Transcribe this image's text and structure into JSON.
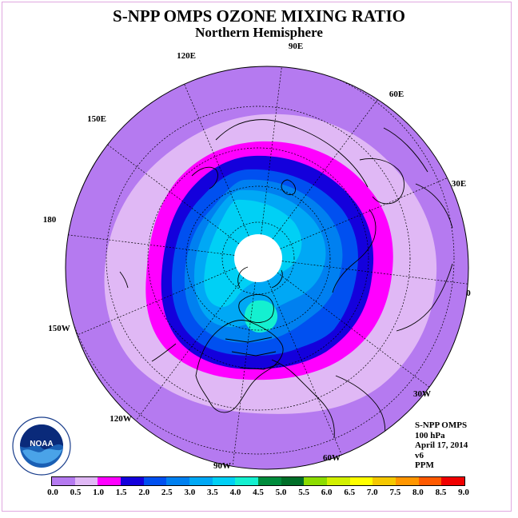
{
  "title": "S-NPP OMPS OZONE MIXING RATIO",
  "subtitle": "Northern Hemisphere",
  "longitude_labels": [
    "90E",
    "60E",
    "30E",
    "0",
    "30W",
    "60W",
    "90W",
    "120W",
    "150W",
    "180",
    "150E",
    "120E"
  ],
  "info": {
    "instrument": "S-NPP OMPS",
    "level": "100 hPa",
    "date": "April 17, 2014",
    "version": "v6",
    "units": "PPM"
  },
  "colorbar": {
    "ticks": [
      "0.0",
      "0.5",
      "1.0",
      "1.5",
      "2.0",
      "2.5",
      "3.0",
      "3.5",
      "4.0",
      "4.5",
      "5.0",
      "5.5",
      "6.0",
      "6.5",
      "7.0",
      "7.5",
      "8.0",
      "8.5",
      "9.0"
    ],
    "colors": [
      "#b57af0",
      "#e0b8f5",
      "#ff00ff",
      "#1400dc",
      "#0050f0",
      "#0080f0",
      "#00a8f5",
      "#00d0f5",
      "#14f0d0",
      "#008c3c",
      "#006e28",
      "#8cdc00",
      "#d2f000",
      "#ffff00",
      "#f5c800",
      "#ff9600",
      "#ff5a00",
      "#f00000",
      "#8c5032"
    ]
  },
  "logo": {
    "text": "NOAA",
    "ring_text": "NATIONAL OCEANIC AND ATMOSPHERIC ADMINISTRATION U.S. DEPARTMENT OF COMMERCE"
  },
  "map": {
    "projection": "north polar stereographic",
    "missing_data": "polar night area shown white",
    "field_colors": {
      "background": "#b57af0",
      "ring1": "#e0b8f5",
      "ring2": "#ff00ff",
      "ring3": "#1400dc",
      "ring4": "#0050f0",
      "ring5": "#0080f0",
      "ring6": "#00a8f5",
      "ring7": "#00d0f5",
      "ring8": "#14f0d0"
    }
  }
}
